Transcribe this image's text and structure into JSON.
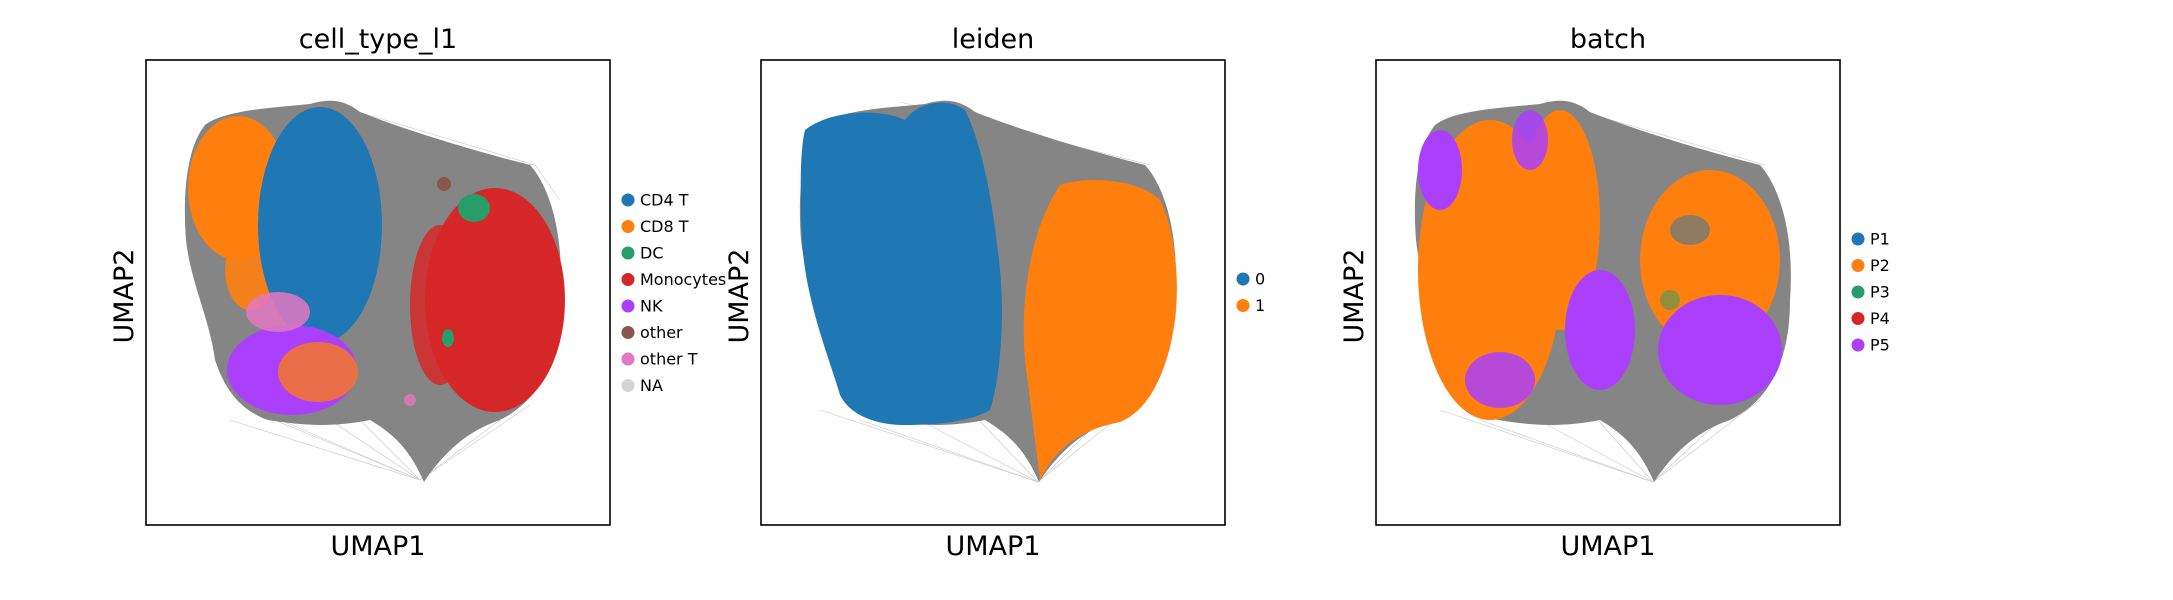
{
  "chart_data": [
    {
      "type": "scatter",
      "title": "cell_type_l1",
      "xlabel": "UMAP1",
      "ylabel": "UMAP2",
      "legend_position": "right",
      "legend": [
        {
          "label": "CD4 T",
          "color": "#1f77b4"
        },
        {
          "label": "CD8 T",
          "color": "#ff7f0e"
        },
        {
          "label": "DC",
          "color": "#279e68"
        },
        {
          "label": "Monocytes",
          "color": "#d62728"
        },
        {
          "label": "NK",
          "color": "#aa40fc"
        },
        {
          "label": "other",
          "color": "#8c564b"
        },
        {
          "label": "other T",
          "color": "#e377c2"
        },
        {
          "label": "NA",
          "color": "#d3d3d3"
        }
      ]
    },
    {
      "type": "scatter",
      "title": "leiden",
      "xlabel": "UMAP1",
      "ylabel": "UMAP2",
      "legend_position": "right",
      "legend": [
        {
          "label": "0",
          "color": "#1f77b4"
        },
        {
          "label": "1",
          "color": "#ff7f0e"
        }
      ]
    },
    {
      "type": "scatter",
      "title": "batch",
      "xlabel": "UMAP1",
      "ylabel": "UMAP2",
      "legend_position": "right",
      "legend": [
        {
          "label": "P1",
          "color": "#1f77b4"
        },
        {
          "label": "P2",
          "color": "#ff7f0e"
        },
        {
          "label": "P3",
          "color": "#279e68"
        },
        {
          "label": "P4",
          "color": "#d62728"
        },
        {
          "label": "P5",
          "color": "#aa40fc"
        }
      ]
    }
  ],
  "colors": {
    "edges": "#808080",
    "background": "#ffffff"
  }
}
